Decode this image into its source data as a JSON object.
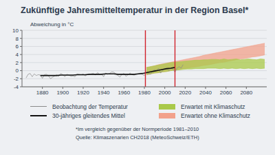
{
  "chart_data": {
    "type": "line",
    "title": "Zukünftige Jahresmitteltemperatur in der Region Basel*",
    "y_label": "Abweichung in °C",
    "xlim": [
      1860,
      2100
    ],
    "xticks": [
      1880,
      1900,
      1920,
      1940,
      1960,
      1980,
      2000,
      2020,
      2040,
      2060,
      2080
    ],
    "ylim": [
      -4,
      10
    ],
    "yticks": [
      -4,
      -2,
      0,
      2,
      4,
      6,
      8,
      10
    ],
    "grid": true,
    "series": [
      {
        "name": "Beobachtung der Temperatur",
        "type": "line",
        "color": "#8a8a8a",
        "x": [
          1864,
          1866,
          1868,
          1870,
          1872,
          1874,
          1876,
          1878,
          1880,
          1882,
          1884,
          1886,
          1888,
          1890,
          1892,
          1894,
          1896,
          1898,
          1900,
          1902,
          1904,
          1906,
          1908,
          1910,
          1912,
          1914,
          1916,
          1918,
          1920,
          1922,
          1924,
          1926,
          1928,
          1930,
          1932,
          1934,
          1936,
          1938,
          1940,
          1942,
          1944,
          1946,
          1948,
          1950,
          1952,
          1954,
          1956,
          1958,
          1960,
          1962,
          1964,
          1966,
          1968,
          1970,
          1972,
          1974,
          1976,
          1978,
          1980,
          1982,
          1984,
          1986,
          1988,
          1990,
          1992,
          1994,
          1996,
          1998,
          2000,
          2002,
          2004,
          2006,
          2008,
          2010,
          2012,
          2014,
          2016,
          2018
        ],
        "values": [
          -1.8,
          -0.9,
          -0.7,
          -1.5,
          -0.8,
          -1.2,
          -1.0,
          -1.1,
          -1.9,
          -1.0,
          -0.9,
          -1.3,
          -2.0,
          -1.6,
          -1.3,
          -1.0,
          -1.4,
          -0.7,
          -1.0,
          -1.5,
          -0.9,
          -1.1,
          -1.4,
          -1.3,
          -1.5,
          -0.8,
          -0.9,
          -1.0,
          -0.8,
          -1.3,
          -1.0,
          -0.9,
          -0.8,
          -0.7,
          -1.1,
          -0.5,
          -0.9,
          -0.8,
          -1.5,
          -0.6,
          -0.9,
          -0.7,
          -0.3,
          -0.4,
          -0.8,
          -1.2,
          -1.6,
          -0.9,
          -0.7,
          -1.4,
          -1.0,
          -0.6,
          -1.0,
          -1.1,
          -0.9,
          -0.8,
          -0.6,
          -0.9,
          -1.2,
          -0.3,
          -0.8,
          -0.9,
          -0.1,
          0.2,
          0.0,
          0.6,
          -0.6,
          0.1,
          0.5,
          0.6,
          0.0,
          0.7,
          0.4,
          -0.4,
          0.6,
          1.0,
          0.6,
          1.5
        ]
      },
      {
        "name": "30-jähriges gleitendes Mittel",
        "type": "line",
        "color": "#111111",
        "x": [
          1878,
          1882,
          1886,
          1890,
          1894,
          1898,
          1902,
          1906,
          1910,
          1914,
          1918,
          1922,
          1926,
          1930,
          1934,
          1938,
          1942,
          1946,
          1950,
          1954,
          1958,
          1962,
          1966,
          1970,
          1974,
          1978,
          1982,
          1986,
          1990,
          1994,
          1998,
          2002,
          2006,
          2010
        ],
        "values": [
          -1.2,
          -1.2,
          -1.2,
          -1.2,
          -1.2,
          -1.1,
          -1.1,
          -1.1,
          -1.1,
          -1.0,
          -1.0,
          -1.0,
          -0.9,
          -0.9,
          -0.9,
          -0.9,
          -0.8,
          -0.8,
          -0.8,
          -0.9,
          -0.9,
          -0.9,
          -0.9,
          -0.9,
          -0.8,
          -0.7,
          -0.5,
          -0.3,
          -0.1,
          0.1,
          0.3,
          0.5,
          0.6,
          0.8
        ]
      },
      {
        "name": "Erwartet mit Klimaschutz",
        "type": "range",
        "color": "#a9c94a",
        "x": [
          1982,
          1986,
          1990,
          1994,
          1998,
          2002,
          2006,
          2010,
          2014,
          2018,
          2022,
          2026,
          2030,
          2034,
          2038,
          2042,
          2046,
          2050,
          2054,
          2058,
          2062,
          2066,
          2070,
          2074,
          2078,
          2082,
          2086,
          2090,
          2094,
          2098
        ],
        "lower": [
          -1.0,
          -0.8,
          -0.6,
          -0.5,
          -0.3,
          -0.2,
          0.0,
          0.1,
          0.2,
          0.3,
          0.4,
          0.4,
          0.5,
          0.5,
          0.5,
          0.6,
          0.6,
          0.6,
          0.5,
          0.6,
          0.5,
          0.6,
          0.5,
          0.6,
          0.5,
          0.6,
          0.5,
          0.6,
          0.5,
          0.6
        ],
        "upper": [
          0.8,
          1.0,
          1.2,
          1.4,
          1.6,
          1.8,
          2.0,
          2.1,
          2.2,
          2.3,
          2.4,
          2.5,
          2.6,
          2.6,
          2.7,
          2.7,
          2.8,
          2.8,
          2.7,
          2.9,
          2.7,
          2.8,
          2.9,
          2.7,
          2.8,
          2.9,
          2.8,
          2.7,
          2.9,
          2.8
        ]
      },
      {
        "name": "Erwartet ohne Klimaschutz",
        "type": "range",
        "color": "#f2a18b",
        "x": [
          1982,
          1986,
          1990,
          1994,
          1998,
          2002,
          2006,
          2010,
          2014,
          2018,
          2022,
          2026,
          2030,
          2034,
          2038,
          2042,
          2046,
          2050,
          2054,
          2058,
          2062,
          2066,
          2070,
          2074,
          2078,
          2082,
          2086,
          2090,
          2094,
          2098
        ],
        "lower": [
          -1.0,
          -0.8,
          -0.6,
          -0.5,
          -0.3,
          -0.2,
          0.0,
          0.2,
          0.3,
          0.5,
          0.6,
          0.8,
          0.9,
          1.1,
          1.3,
          1.4,
          1.6,
          1.8,
          2.0,
          2.1,
          2.3,
          2.5,
          2.7,
          2.9,
          3.0,
          3.2,
          3.4,
          3.5,
          3.7,
          3.9
        ],
        "upper": [
          0.8,
          1.0,
          1.2,
          1.5,
          1.7,
          1.9,
          2.1,
          2.3,
          2.5,
          2.7,
          2.9,
          3.1,
          3.3,
          3.5,
          3.8,
          4.0,
          4.2,
          4.4,
          4.6,
          4.8,
          5.0,
          5.2,
          5.4,
          5.6,
          5.8,
          6.0,
          6.2,
          6.4,
          6.6,
          6.8
        ]
      }
    ],
    "reference_lines": {
      "x": [
        1981,
        2010
      ],
      "color": "#d0202a"
    },
    "footnote": "*Im vergleich gegenüber der Normperiode 1981–2010",
    "source": "Quelle: Klimaszenarien CH2018 (MeteoSchweiz/ETH)"
  }
}
